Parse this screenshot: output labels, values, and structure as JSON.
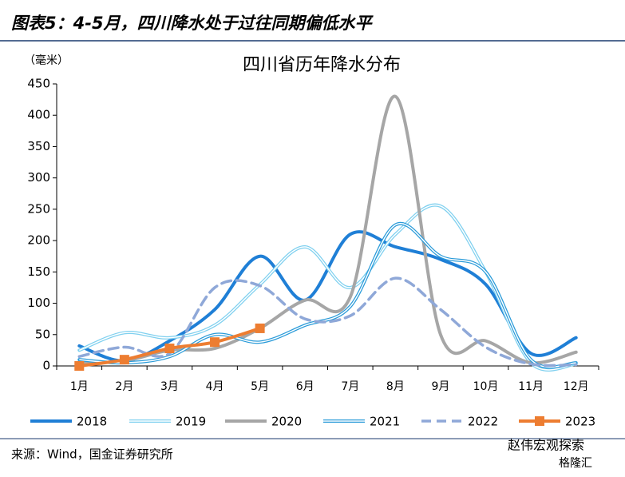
{
  "header": "图表5：4-5月，四川降水处于过往同期偏低水平",
  "chart_data": {
    "type": "line",
    "title": "四川省历年降水分布",
    "y_label": "（毫米）",
    "categories": [
      "1月",
      "2月",
      "3月",
      "4月",
      "5月",
      "6月",
      "7月",
      "8月",
      "9月",
      "10月",
      "11月",
      "12月"
    ],
    "ylim": [
      0,
      450
    ],
    "yticks": [
      0,
      50,
      100,
      150,
      200,
      250,
      300,
      350,
      400,
      450
    ],
    "grid": false,
    "legend": "bottom",
    "smooth": true,
    "series": [
      {
        "name": "2018",
        "color": "#1f7fd6",
        "style": "solid",
        "values": [
          32,
          8,
          40,
          90,
          175,
          105,
          210,
          190,
          170,
          130,
          20,
          45
        ]
      },
      {
        "name": "2019",
        "color": "#7fd0ef",
        "style": "double",
        "values": [
          25,
          53,
          45,
          65,
          130,
          190,
          125,
          210,
          255,
          150,
          5,
          3
        ]
      },
      {
        "name": "2020",
        "color": "#a6a6a6",
        "style": "solid",
        "values": [
          5,
          8,
          25,
          28,
          60,
          105,
          110,
          430,
          50,
          40,
          5,
          22
        ]
      },
      {
        "name": "2021",
        "color": "#2a9bd9",
        "style": "double",
        "values": [
          10,
          5,
          15,
          50,
          38,
          65,
          95,
          225,
          175,
          150,
          10,
          5
        ]
      },
      {
        "name": "2022",
        "color": "#8fa8d8",
        "style": "dashed",
        "values": [
          15,
          30,
          20,
          125,
          128,
          75,
          80,
          140,
          90,
          30,
          3,
          2
        ]
      },
      {
        "name": "2023",
        "color": "#ed7d31",
        "style": "solid",
        "marker": "square",
        "values": [
          0,
          10,
          28,
          38,
          60,
          null,
          null,
          null,
          null,
          null,
          null,
          null
        ]
      }
    ]
  },
  "source": "来源：Wind，国金证券研究所",
  "watermark": [
    "赵伟宏观探索",
    "格隆汇"
  ]
}
